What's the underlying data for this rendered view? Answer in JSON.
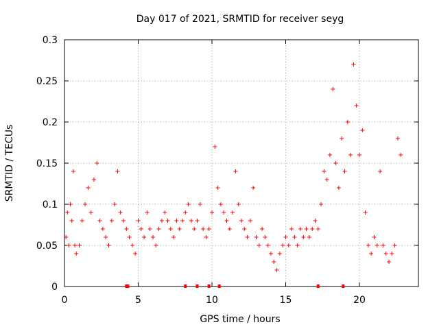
{
  "chart_data": {
    "type": "scatter",
    "title": "Day 017 of 2021, SRMTID for receiver seyg",
    "xlabel": "GPS time / hours",
    "ylabel": "SRMTID / TECUs",
    "xlim": [
      0,
      24
    ],
    "ylim": [
      0,
      0.3
    ],
    "x_ticks": [
      0,
      5,
      10,
      15,
      20
    ],
    "x_tick_labels": [
      "0",
      "5",
      "10",
      "15",
      "20"
    ],
    "y_ticks": [
      0,
      0.05,
      0.1,
      0.15,
      0.2,
      0.25,
      0.3
    ],
    "y_tick_labels": [
      "0",
      "0.05",
      "0.1",
      "0.15",
      "0.2",
      "0.25",
      "0.3"
    ],
    "grid": true,
    "marker": "+",
    "color": "#ff0000",
    "series": [
      {
        "name": "SRMTID",
        "x": [
          0.1,
          0.2,
          0.3,
          0.4,
          0.5,
          0.6,
          0.7,
          0.8,
          1.0,
          1.2,
          1.4,
          1.6,
          1.8,
          2.0,
          2.2,
          2.4,
          2.6,
          2.8,
          3.0,
          3.2,
          3.4,
          3.6,
          3.8,
          4.0,
          4.2,
          4.4,
          4.6,
          4.8,
          5.0,
          5.2,
          5.4,
          5.6,
          5.8,
          6.0,
          6.2,
          6.4,
          6.6,
          6.8,
          7.0,
          7.2,
          7.4,
          7.6,
          7.8,
          8.0,
          8.2,
          8.4,
          8.6,
          8.8,
          9.0,
          9.2,
          9.4,
          9.6,
          9.8,
          10.0,
          10.2,
          10.4,
          10.6,
          10.8,
          11.0,
          11.2,
          11.4,
          11.6,
          11.8,
          12.0,
          12.2,
          12.4,
          12.6,
          12.8,
          13.0,
          13.2,
          13.4,
          13.6,
          13.8,
          14.0,
          14.2,
          14.4,
          14.6,
          14.8,
          15.0,
          15.2,
          15.4,
          15.6,
          15.8,
          16.0,
          16.2,
          16.4,
          16.6,
          16.8,
          17.0,
          17.2,
          17.4,
          17.6,
          17.8,
          18.0,
          18.2,
          18.4,
          18.6,
          18.8,
          19.0,
          19.2,
          19.4,
          19.6,
          19.8,
          20.0,
          20.2,
          20.4,
          20.6,
          20.8,
          21.0,
          21.2,
          21.4,
          21.6,
          21.8,
          22.0,
          22.2,
          22.4,
          22.6,
          22.8
        ],
        "y": [
          0.06,
          0.09,
          0.05,
          0.1,
          0.08,
          0.14,
          0.05,
          0.04,
          0.05,
          0.08,
          0.1,
          0.12,
          0.09,
          0.13,
          0.15,
          0.08,
          0.07,
          0.06,
          0.05,
          0.08,
          0.1,
          0.14,
          0.09,
          0.08,
          0.07,
          0.06,
          0.05,
          0.04,
          0.08,
          0.07,
          0.06,
          0.09,
          0.07,
          0.06,
          0.05,
          0.07,
          0.08,
          0.09,
          0.08,
          0.07,
          0.06,
          0.08,
          0.07,
          0.08,
          0.09,
          0.1,
          0.08,
          0.07,
          0.08,
          0.1,
          0.07,
          0.06,
          0.07,
          0.09,
          0.17,
          0.12,
          0.1,
          0.09,
          0.08,
          0.07,
          0.09,
          0.14,
          0.1,
          0.08,
          0.07,
          0.06,
          0.08,
          0.12,
          0.06,
          0.05,
          0.07,
          0.06,
          0.05,
          0.04,
          0.03,
          0.02,
          0.04,
          0.05,
          0.06,
          0.05,
          0.07,
          0.06,
          0.05,
          0.07,
          0.06,
          0.07,
          0.06,
          0.07,
          0.08,
          0.07,
          0.1,
          0.14,
          0.13,
          0.16,
          0.24,
          0.15,
          0.12,
          0.18,
          0.14,
          0.2,
          0.16,
          0.27,
          0.22,
          0.16,
          0.19,
          0.09,
          0.05,
          0.04,
          0.06,
          0.05,
          0.14,
          0.05,
          0.04,
          0.03,
          0.04,
          0.05,
          0.18,
          0.16
        ]
      }
    ],
    "bottom_markers_x": [
      4.2,
      4.3,
      8.2,
      9.0,
      9.8,
      10.5,
      17.2,
      18.9
    ]
  }
}
